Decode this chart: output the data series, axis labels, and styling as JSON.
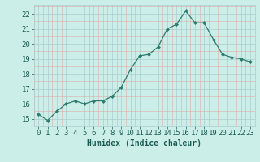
{
  "x": [
    0,
    1,
    2,
    3,
    4,
    5,
    6,
    7,
    8,
    9,
    10,
    11,
    12,
    13,
    14,
    15,
    16,
    17,
    18,
    19,
    20,
    21,
    22,
    23
  ],
  "y": [
    15.3,
    14.9,
    15.5,
    16.0,
    16.2,
    16.0,
    16.2,
    16.2,
    16.5,
    17.1,
    18.3,
    19.2,
    19.3,
    19.8,
    21.0,
    21.3,
    22.2,
    21.4,
    21.4,
    20.3,
    19.3,
    19.1,
    19.0,
    18.8
  ],
  "line_color": "#2d7a6e",
  "marker": "D",
  "marker_size": 2.0,
  "bg_color": "#cceee8",
  "grid_color_major": "#aacccc",
  "grid_color_minor": "#ddaaaa",
  "xlabel": "Humidex (Indice chaleur)",
  "xlabel_color": "#1a5c52",
  "tick_color": "#1a5c52",
  "ylabel_ticks": [
    15,
    16,
    17,
    18,
    19,
    20,
    21,
    22
  ],
  "ylim": [
    14.5,
    22.6
  ],
  "xlim": [
    -0.5,
    23.5
  ],
  "xlabel_fontsize": 7,
  "tick_fontsize": 6.5
}
